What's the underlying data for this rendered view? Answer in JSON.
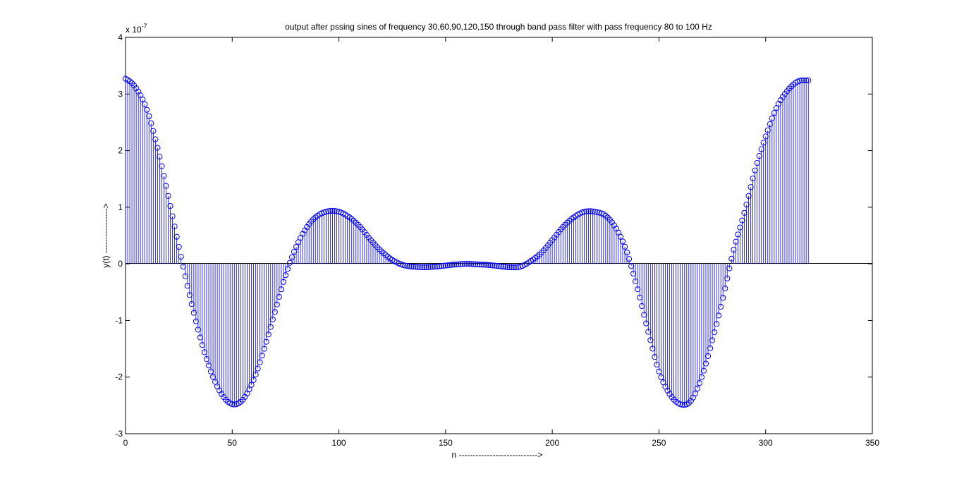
{
  "chart_data": {
    "type": "stem",
    "title": "output after pssing sines of frequency 30,60,90,120,150 through band pass filter with pass frequency 80 to 100 Hz",
    "xlabel": "n ---------------------------->",
    "ylabel": "y(t) ---------------->",
    "y_exponent_label": "x 10",
    "y_exponent_power": "-7",
    "xlim": [
      0,
      350
    ],
    "ylim": [
      -3,
      4
    ],
    "x_ticks": [
      0,
      50,
      100,
      150,
      200,
      250,
      300,
      350
    ],
    "y_ticks": [
      -3,
      -2,
      -1,
      0,
      1,
      2,
      3,
      4
    ],
    "x_tick_labels": [
      "0",
      "50",
      "100",
      "150",
      "200",
      "250",
      "300",
      "350"
    ],
    "y_tick_labels": [
      "-3",
      "-2",
      "-1",
      "0",
      "1",
      "2",
      "3",
      "4"
    ],
    "grid": false,
    "marker": "circle",
    "color": "#0000ff",
    "series": [
      {
        "x": [
          0,
          5,
          10,
          15,
          20,
          25,
          30,
          35,
          40,
          45,
          50,
          55,
          60,
          65,
          70,
          75,
          80,
          85,
          90,
          95,
          100,
          105,
          110,
          115,
          120,
          125,
          130,
          135,
          140,
          145,
          150,
          155,
          160,
          165,
          170,
          175,
          180,
          185,
          190,
          195,
          200,
          205,
          210,
          215,
          220,
          225,
          230,
          235,
          240,
          245,
          250,
          255,
          260,
          265,
          270,
          275,
          280,
          285,
          290,
          295,
          300,
          305,
          310,
          315,
          320
        ],
        "y": [
          3.27,
          3.1,
          2.72,
          2.05,
          1.2,
          0.3,
          -0.55,
          -1.3,
          -1.9,
          -2.3,
          -2.48,
          -2.4,
          -2.05,
          -1.5,
          -0.85,
          -0.2,
          0.3,
          0.65,
          0.85,
          0.93,
          0.92,
          0.82,
          0.65,
          0.42,
          0.22,
          0.07,
          -0.02,
          -0.05,
          -0.06,
          -0.05,
          -0.03,
          -0.01,
          0.0,
          -0.01,
          -0.02,
          -0.04,
          -0.06,
          -0.05,
          0.05,
          0.2,
          0.42,
          0.65,
          0.82,
          0.92,
          0.92,
          0.85,
          0.62,
          0.2,
          -0.45,
          -1.2,
          -1.9,
          -2.3,
          -2.48,
          -2.42,
          -2.0,
          -1.35,
          -0.6,
          0.25,
          0.9,
          1.65,
          2.25,
          2.75,
          3.05,
          3.22,
          3.24
        ]
      }
    ]
  }
}
